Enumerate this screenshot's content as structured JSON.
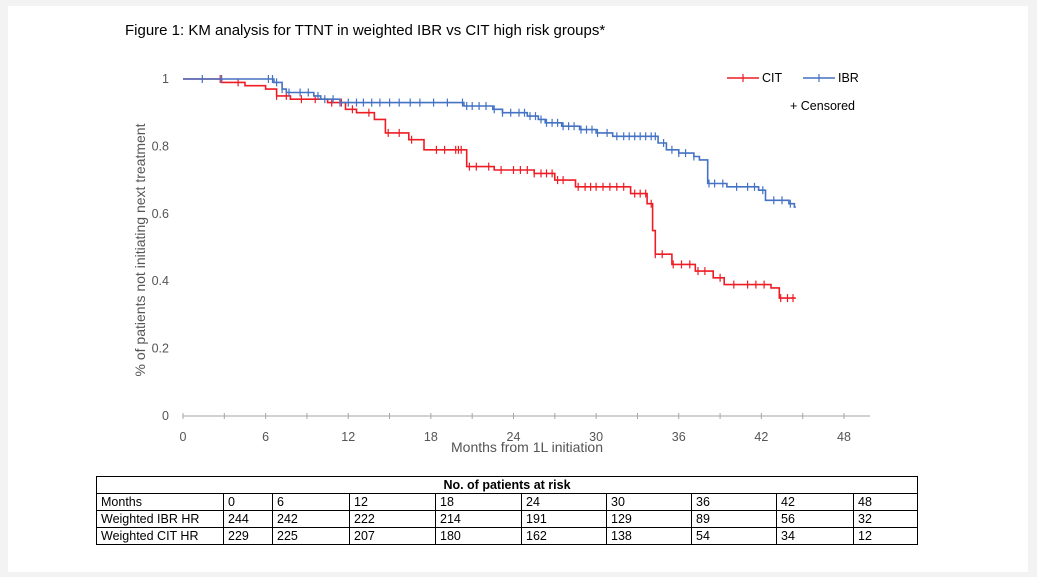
{
  "figure": {
    "title": "Figure 1: KM analysis for TTNT in weighted IBR vs CIT high risk groups*"
  },
  "chart_data": {
    "type": "line",
    "title": "Figure 1: KM analysis for TTNT in weighted IBR vs CIT high risk groups*",
    "xlabel": "Months from 1L initiation",
    "ylabel": "% of patients not initiating next treatment",
    "xlim": [
      0,
      48
    ],
    "ylim": [
      0,
      1
    ],
    "x_ticks": [
      "0",
      "6",
      "12",
      "18",
      "24",
      "30",
      "36",
      "42",
      "48"
    ],
    "y_ticks": [
      "0",
      "0.2",
      "0.4",
      "0.6",
      "0.8",
      "1"
    ],
    "grid": false,
    "legend_position": "top-right",
    "censored_label": "+ Censored",
    "series": [
      {
        "name": "CIT",
        "color": "#ee1c24",
        "steps": [
          [
            0,
            1
          ],
          [
            2.8,
            0.99
          ],
          [
            4.5,
            0.98
          ],
          [
            6,
            0.97
          ],
          [
            6.8,
            0.95
          ],
          [
            7.8,
            0.94
          ],
          [
            10.5,
            0.93
          ],
          [
            11.8,
            0.91
          ],
          [
            12.6,
            0.9
          ],
          [
            13.9,
            0.88
          ],
          [
            14.7,
            0.84
          ],
          [
            16.4,
            0.82
          ],
          [
            17.5,
            0.79
          ],
          [
            20.6,
            0.74
          ],
          [
            22.6,
            0.73
          ],
          [
            25.5,
            0.72
          ],
          [
            27,
            0.7
          ],
          [
            28.5,
            0.68
          ],
          [
            32.5,
            0.66
          ],
          [
            33.7,
            0.63
          ],
          [
            34.1,
            0.55
          ],
          [
            34.3,
            0.48
          ],
          [
            35.5,
            0.45
          ],
          [
            37.2,
            0.43
          ],
          [
            38.5,
            0.41
          ],
          [
            39.3,
            0.39
          ],
          [
            42.7,
            0.38
          ],
          [
            43.3,
            0.35
          ],
          [
            44.5,
            0.35
          ]
        ],
        "censored": [
          2.7,
          4,
          6.8,
          7.5,
          8.6,
          9.6,
          10.8,
          11.5,
          12.3,
          13.5,
          14.9,
          15.7,
          16.6,
          18.4,
          19,
          19.8,
          20,
          20.2,
          20.8,
          21.3,
          22.2,
          23.1,
          24,
          24.5,
          25,
          25.5,
          26,
          26.4,
          26.8,
          27.2,
          27.6,
          28.7,
          29.2,
          29.6,
          30,
          30.5,
          31,
          31.5,
          32,
          32.8,
          33.2,
          33.6,
          34,
          34.3,
          34.8,
          35.6,
          36.2,
          36.8,
          37.4,
          37.9,
          39,
          40,
          41,
          41.6,
          42.2,
          43.4,
          43.9,
          44.3
        ],
        "end_x": 44.5
      },
      {
        "name": "IBR",
        "color": "#4472c4",
        "steps": [
          [
            0,
            1
          ],
          [
            6.6,
            0.99
          ],
          [
            7.2,
            0.97
          ],
          [
            7.5,
            0.96
          ],
          [
            9.5,
            0.95
          ],
          [
            10,
            0.94
          ],
          [
            11.4,
            0.93
          ],
          [
            20.4,
            0.92
          ],
          [
            22.5,
            0.91
          ],
          [
            23.2,
            0.9
          ],
          [
            25,
            0.89
          ],
          [
            25.8,
            0.88
          ],
          [
            26.3,
            0.87
          ],
          [
            27.5,
            0.86
          ],
          [
            28.8,
            0.85
          ],
          [
            30,
            0.84
          ],
          [
            31.2,
            0.83
          ],
          [
            34.5,
            0.81
          ],
          [
            35.1,
            0.79
          ],
          [
            36,
            0.78
          ],
          [
            37.1,
            0.77
          ],
          [
            37.5,
            0.76
          ],
          [
            38.1,
            0.69
          ],
          [
            39.5,
            0.68
          ],
          [
            41.8,
            0.67
          ],
          [
            42.3,
            0.64
          ],
          [
            44,
            0.63
          ],
          [
            44.4,
            0.62
          ]
        ],
        "censored": [
          1.4,
          2.8,
          6.2,
          6.5,
          6.8,
          7.2,
          7.7,
          8.5,
          9.1,
          9.8,
          10.3,
          10.9,
          11.4,
          12,
          12.6,
          13.1,
          13.7,
          14.3,
          15,
          15.7,
          16.5,
          17.2,
          18.2,
          19.2,
          20.3,
          20.6,
          21,
          21.5,
          22,
          22.6,
          23.2,
          23.8,
          24.4,
          24.8,
          25.2,
          25.6,
          26,
          26.4,
          26.8,
          27.2,
          27.6,
          28,
          28.4,
          28.9,
          29.3,
          29.7,
          30.1,
          30.8,
          31.5,
          32,
          32.4,
          32.8,
          33.2,
          33.6,
          34,
          34.3,
          34.9,
          35.5,
          36,
          36.5,
          37.1,
          38.2,
          38.6,
          39.2,
          40.2,
          41,
          41.5,
          42.1,
          42.9,
          43.5,
          44.1
        ],
        "end_x": 44.5
      }
    ]
  },
  "risk_table": {
    "title": "No. of patients at risk",
    "header": [
      "Months",
      "0",
      "6",
      "12",
      "18",
      "24",
      "30",
      "36",
      "42",
      "48"
    ],
    "rows": [
      [
        "Weighted IBR HR",
        "244",
        "242",
        "222",
        "214",
        "191",
        "129",
        "89",
        "56",
        "32"
      ],
      [
        "Weighted CIT HR",
        "229",
        "225",
        "207",
        "180",
        "162",
        "138",
        "54",
        "34",
        "12"
      ]
    ]
  }
}
